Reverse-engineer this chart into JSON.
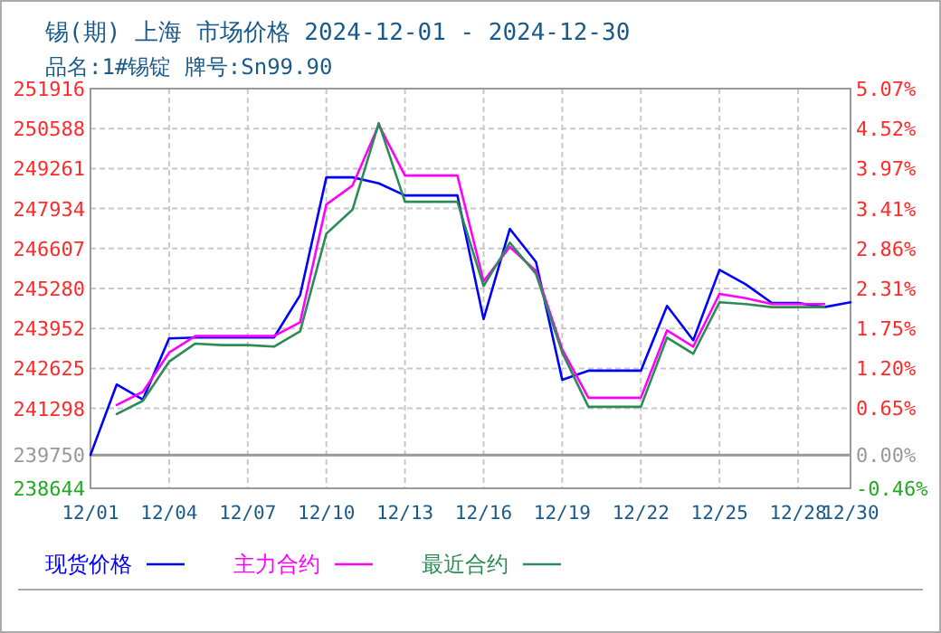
{
  "chart_data": {
    "type": "line",
    "title": "锡(期) 上海 市场价格 2024-12-01 - 2024-12-30",
    "subtitle": "品名:1#锡锭 牌号:Sn99.90",
    "x": [
      "2024-12-01",
      "2024-12-02",
      "2024-12-03",
      "2024-12-04",
      "2024-12-05",
      "2024-12-06",
      "2024-12-07",
      "2024-12-08",
      "2024-12-09",
      "2024-12-10",
      "2024-12-11",
      "2024-12-12",
      "2024-12-13",
      "2024-12-14",
      "2024-12-15",
      "2024-12-16",
      "2024-12-17",
      "2024-12-18",
      "2024-12-19",
      "2024-12-20",
      "2024-12-21",
      "2024-12-22",
      "2024-12-23",
      "2024-12-24",
      "2024-12-25",
      "2024-12-26",
      "2024-12-27",
      "2024-12-28",
      "2024-12-29",
      "2024-12-30"
    ],
    "series": [
      {
        "name": "现货价格",
        "color": "#0000ff",
        "values": [
          239750,
          242090,
          241590,
          243620,
          243650,
          243650,
          243650,
          243650,
          245060,
          248970,
          248970,
          248770,
          248370,
          248370,
          248370,
          244260,
          247260,
          246160,
          242250,
          242550,
          242550,
          242550,
          244700,
          243560,
          245900,
          245420,
          244800,
          244800,
          244660,
          244820
        ]
      },
      {
        "name": "主力合约",
        "color": "#ff00ff",
        "values": [
          null,
          241410,
          241850,
          243150,
          243700,
          243700,
          243700,
          243700,
          244160,
          248070,
          248700,
          250710,
          249030,
          249030,
          249030,
          245520,
          246660,
          245860,
          243260,
          241650,
          241650,
          241650,
          243890,
          243350,
          245100,
          244960,
          244760,
          244760,
          244760,
          null
        ]
      },
      {
        "name": "最近合约",
        "color": "#2e8b57",
        "values": [
          null,
          241110,
          241550,
          242850,
          243450,
          243400,
          243400,
          243350,
          243860,
          247100,
          247900,
          250770,
          248160,
          248160,
          248160,
          245360,
          246800,
          245760,
          243150,
          241350,
          241350,
          241350,
          243650,
          243110,
          244820,
          244760,
          244660,
          244660,
          244660,
          null
        ]
      }
    ],
    "xlim": [
      "2024-12-01",
      "2024-12-30"
    ],
    "xticks": [
      {
        "value": "2024-12-01",
        "label": "12/01"
      },
      {
        "value": "2024-12-04",
        "label": "12/04"
      },
      {
        "value": "2024-12-07",
        "label": "12/07"
      },
      {
        "value": "2024-12-10",
        "label": "12/10"
      },
      {
        "value": "2024-12-13",
        "label": "12/13"
      },
      {
        "value": "2024-12-16",
        "label": "12/16"
      },
      {
        "value": "2024-12-19",
        "label": "12/19"
      },
      {
        "value": "2024-12-22",
        "label": "12/22"
      },
      {
        "value": "2024-12-25",
        "label": "12/25"
      },
      {
        "value": "2024-12-28",
        "label": "12/28"
      },
      {
        "value": "2024-12-30",
        "label": "12/30"
      }
    ],
    "ylim": [
      238644,
      251916
    ],
    "yticks": [
      238644,
      239750,
      241298,
      242625,
      243952,
      245280,
      246607,
      247934,
      249261,
      250588,
      251916
    ],
    "y2lim": [
      -0.46,
      5.07
    ],
    "y2ticks": [
      {
        "value": -0.46,
        "label": "-0.46%"
      },
      {
        "value": 0,
        "label": "0.00%"
      },
      {
        "value": 0.65,
        "label": "0.65%"
      },
      {
        "value": 1.2,
        "label": "1.20%"
      },
      {
        "value": 1.75,
        "label": "1.75%"
      },
      {
        "value": 2.31,
        "label": "2.31%"
      },
      {
        "value": 2.86,
        "label": "2.86%"
      },
      {
        "value": 3.41,
        "label": "3.41%"
      },
      {
        "value": 3.97,
        "label": "3.97%"
      },
      {
        "value": 4.52,
        "label": "4.52%"
      },
      {
        "value": 5.07,
        "label": "5.07%"
      }
    ],
    "ref_lines": [
      {
        "axis": "y",
        "value": 239750,
        "color": "#999999",
        "line_style": "solid"
      }
    ],
    "grid": true,
    "legend": "bottom",
    "line_style": "solid",
    "marker": "none"
  }
}
